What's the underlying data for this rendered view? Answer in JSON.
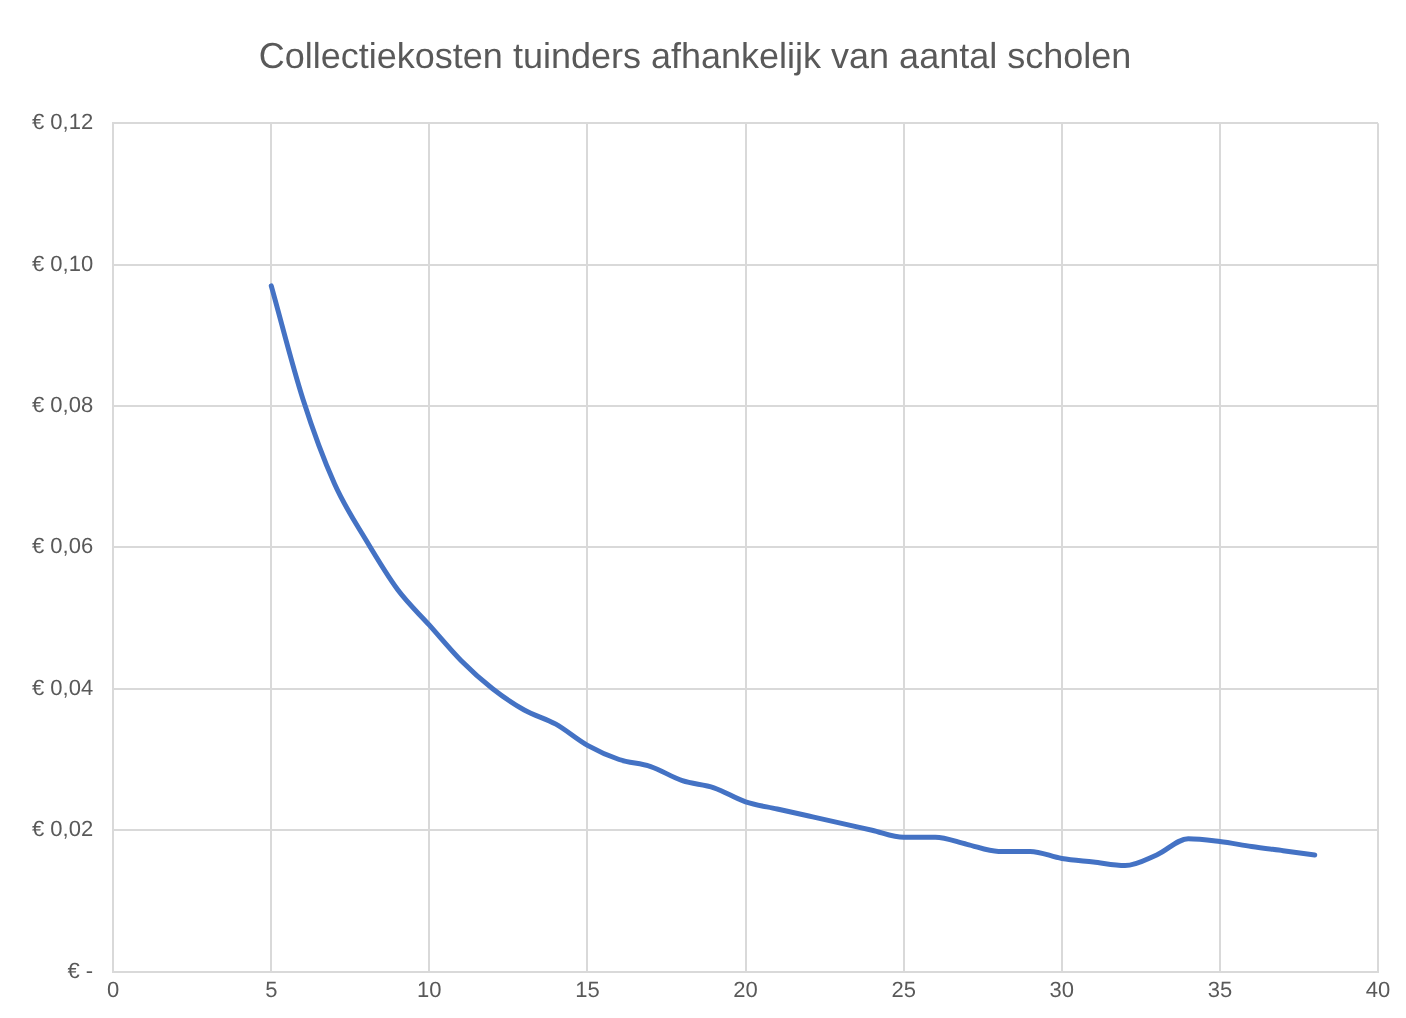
{
  "chart_data": {
    "type": "line",
    "title": "Collectiekosten tuinders afhankelijk van aantal scholen",
    "x": [
      5,
      6,
      7,
      8,
      9,
      10,
      11,
      12,
      13,
      14,
      15,
      16,
      17,
      18,
      19,
      20,
      21,
      22,
      23,
      24,
      25,
      26,
      27,
      28,
      29,
      30,
      31,
      32,
      33,
      34,
      35,
      36,
      37,
      38
    ],
    "series": [
      {
        "color": "#4472c4",
        "values": [
          0.097,
          0.081,
          0.069,
          0.061,
          0.054,
          0.049,
          0.044,
          0.04,
          0.037,
          0.035,
          0.032,
          0.03,
          0.029,
          0.027,
          0.026,
          0.024,
          0.023,
          0.022,
          0.021,
          0.02,
          0.019,
          0.019,
          0.018,
          0.017,
          0.017,
          0.016,
          0.0155,
          0.015,
          0.0165,
          0.0188,
          0.0184,
          0.0177,
          0.0171,
          0.0165
        ]
      }
    ],
    "xlim": [
      0,
      40
    ],
    "xticks": [
      0,
      5,
      10,
      15,
      20,
      25,
      30,
      35,
      40
    ],
    "ylim": [
      0,
      0.12
    ],
    "yticks": [
      {
        "value": 0,
        "label": "€ -"
      },
      {
        "value": 0.02,
        "label": "€ 0,02"
      },
      {
        "value": 0.04,
        "label": "€ 0,04"
      },
      {
        "value": 0.06,
        "label": "€ 0,06"
      },
      {
        "value": 0.08,
        "label": "€ 0,08"
      },
      {
        "value": 0.1,
        "label": "€ 0,10"
      },
      {
        "value": 0.12,
        "label": "€ 0,12"
      }
    ],
    "grid": true,
    "legend": false,
    "marker": "none",
    "line_style": "solid"
  }
}
